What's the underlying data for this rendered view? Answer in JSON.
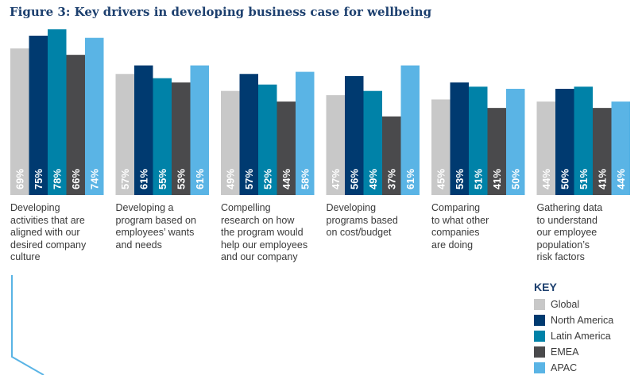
{
  "chart_data": {
    "type": "bar",
    "title": "Figure 3: Key drivers in developing business case for wellbeing",
    "categories": [
      "Developing\nactivities that are\naligned with our\ndesired company\nculture",
      "Developing a\nprogram based on\nemployees’ wants\nand needs",
      "Compelling\nresearch on how\nthe program would\nhelp our employees\nand our company",
      "Developing\nprograms based\non cost/budget",
      "Comparing\nto what other\ncompanies\nare doing",
      "Gathering data\nto understand\nour employee\npopulation’s\nrisk factors"
    ],
    "series": [
      {
        "name": "Global",
        "color": "#c8c8c8",
        "values": [
          69,
          57,
          49,
          47,
          45,
          44
        ]
      },
      {
        "name": "North America",
        "color": "#003a70",
        "values": [
          75,
          61,
          57,
          56,
          53,
          50
        ]
      },
      {
        "name": "Latin America",
        "color": "#0082a8",
        "values": [
          78,
          55,
          52,
          49,
          51,
          51
        ]
      },
      {
        "name": "EMEA",
        "color": "#4a4a4c",
        "values": [
          66,
          53,
          44,
          37,
          41,
          41
        ]
      },
      {
        "name": "APAC",
        "color": "#5ab4e5",
        "values": [
          74,
          61,
          58,
          61,
          50,
          44
        ]
      }
    ],
    "value_suffix": "%",
    "ylim": [
      0,
      78
    ],
    "legend": {
      "title": "KEY",
      "position": "bottom-right"
    },
    "xlabel": "",
    "ylabel": ""
  }
}
